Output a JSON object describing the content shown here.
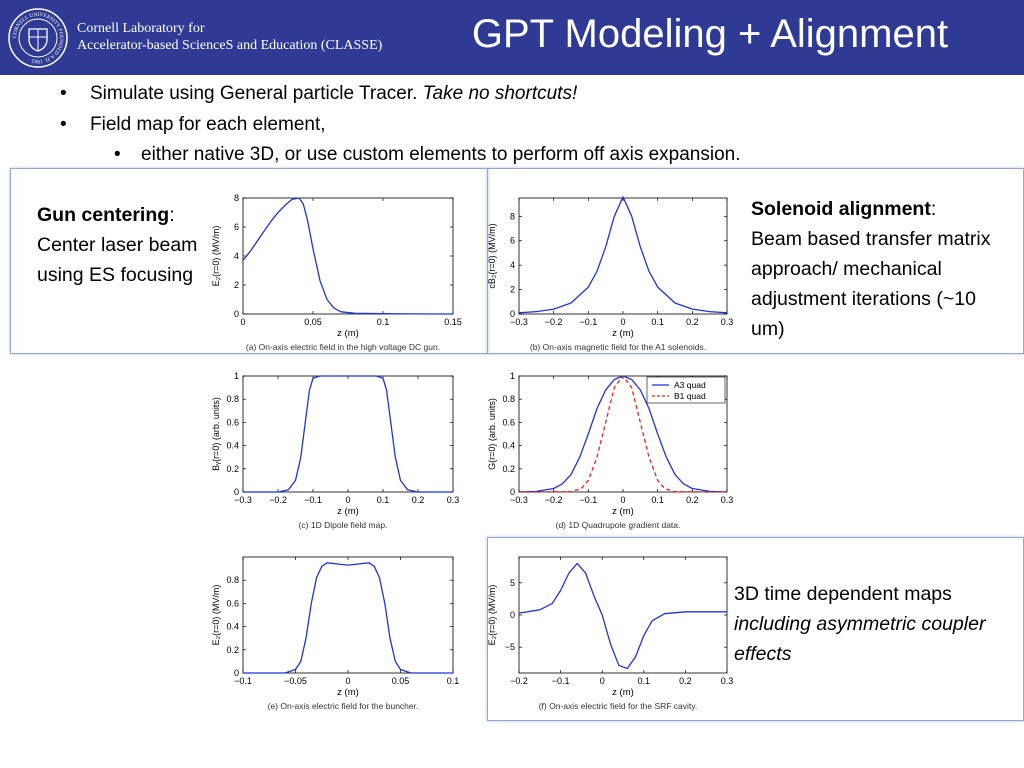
{
  "header": {
    "lab_line1": "Cornell Laboratory for",
    "lab_line2": "Accelerator-based ScienceS and Education (CLASSE)",
    "title": "GPT Modeling + Alignment",
    "seal_text": "CORNELL UNIVERSITY FOUNDED A.D. 1865"
  },
  "bullets": {
    "b1_plain": "Simulate using General particle Tracer. ",
    "b1_italic": "Take no shortcuts!",
    "b2": "Field map for each element,",
    "b3": "either native 3D, or use custom elements to perform off axis expansion."
  },
  "notes": {
    "gun_bold": "Gun centering",
    "gun_colon": ":",
    "gun_text": "Center laser beam using ES focusing",
    "sol_bold": "Solenoid alignment",
    "sol_colon": ":",
    "sol_text": "Beam based transfer matrix approach/ mechanical adjustment iterations (~10 um)",
    "td_plain": "3D time dependent maps",
    "td_italic": "including asymmetric coupler effects"
  },
  "colors": {
    "header_bg": "#2e3a93",
    "curve": "#1f35d6",
    "curve2": "#e0231b",
    "frame": "#8fa8d6"
  },
  "chart_data": [
    {
      "id": "a",
      "type": "line",
      "caption": "(a)  On-axis electric field in the high voltage DC gun.",
      "xlabel": "z (m)",
      "ylabel": "E₂(r=0) (MV/m)",
      "xlim": [
        0,
        0.15
      ],
      "ylim": [
        0,
        8
      ],
      "xticks": [
        0,
        0.05,
        0.1,
        0.15
      ],
      "xtick_labels": [
        "0",
        "0.05",
        "0.1",
        "0.15"
      ],
      "yticks": [
        0,
        2,
        4,
        6,
        8
      ],
      "ytick_labels": [
        "0",
        "2",
        "4",
        "6",
        "8"
      ],
      "series": [
        {
          "x": [
            0,
            0.005,
            0.01,
            0.015,
            0.02,
            0.025,
            0.03,
            0.035,
            0.04,
            0.043,
            0.046,
            0.05,
            0.055,
            0.06,
            0.065,
            0.07,
            0.08,
            0.1,
            0.12,
            0.15
          ],
          "y": [
            3.7,
            4.3,
            5.0,
            5.7,
            6.4,
            7.0,
            7.5,
            7.9,
            8.0,
            7.6,
            6.5,
            4.5,
            2.3,
            1.0,
            0.4,
            0.15,
            0.05,
            0.02,
            0.01,
            0
          ]
        }
      ]
    },
    {
      "id": "b",
      "type": "line",
      "caption": "(b)  On-axis magnetic field for the A1 solenoids.",
      "xlabel": "z (m)",
      "ylabel": "cB₂(r=0) (MV/m)",
      "xlim": [
        -0.3,
        0.3
      ],
      "ylim": [
        0,
        9.5
      ],
      "xticks": [
        -0.3,
        -0.2,
        -0.1,
        0,
        0.1,
        0.2,
        0.3
      ],
      "xtick_labels": [
        "−0.3",
        "−0.2",
        "−0.1",
        "0",
        "0.1",
        "0.2",
        "0.3"
      ],
      "yticks": [
        0,
        2,
        4,
        6,
        8
      ],
      "ytick_labels": [
        "0",
        "2",
        "4",
        "6",
        "8"
      ],
      "series": [
        {
          "x": [
            -0.3,
            -0.25,
            -0.2,
            -0.15,
            -0.1,
            -0.075,
            -0.05,
            -0.025,
            0,
            0.025,
            0.05,
            0.075,
            0.1,
            0.15,
            0.2,
            0.25,
            0.3
          ],
          "y": [
            0.1,
            0.2,
            0.4,
            0.9,
            2.2,
            3.5,
            5.5,
            8.0,
            9.6,
            8.0,
            5.5,
            3.5,
            2.2,
            0.9,
            0.4,
            0.2,
            0.1
          ]
        }
      ]
    },
    {
      "id": "c",
      "type": "line",
      "caption": "(c)  1D Dipole field map.",
      "xlabel": "z (m)",
      "ylabel": "Bᵧ(r=0) (arb. units)",
      "xlim": [
        -0.3,
        0.3
      ],
      "ylim": [
        0,
        1
      ],
      "xticks": [
        -0.3,
        -0.2,
        -0.1,
        0,
        0.1,
        0.2,
        0.3
      ],
      "xtick_labels": [
        "−0.3",
        "−0.2",
        "−0.1",
        "0",
        "0.1",
        "0.2",
        "0.3"
      ],
      "yticks": [
        0,
        0.2,
        0.4,
        0.6,
        0.8,
        1
      ],
      "ytick_labels": [
        "0",
        "0.2",
        "0.4",
        "0.6",
        "0.8",
        "1"
      ],
      "series": [
        {
          "x": [
            -0.3,
            -0.2,
            -0.17,
            -0.15,
            -0.135,
            -0.12,
            -0.11,
            -0.1,
            -0.08,
            0,
            0.08,
            0.1,
            0.11,
            0.12,
            0.135,
            0.15,
            0.17,
            0.2,
            0.3
          ],
          "y": [
            0,
            0,
            0.02,
            0.1,
            0.3,
            0.65,
            0.88,
            0.98,
            1,
            1,
            1,
            0.98,
            0.88,
            0.65,
            0.3,
            0.1,
            0.02,
            0,
            0
          ]
        }
      ]
    },
    {
      "id": "d",
      "type": "line",
      "caption": "(d)  1D Quadrupole gradient data.",
      "xlabel": "z (m)",
      "ylabel": "G(r=0) (arb. units)",
      "xlim": [
        -0.3,
        0.3
      ],
      "ylim": [
        0,
        1
      ],
      "xticks": [
        -0.3,
        -0.2,
        -0.1,
        0,
        0.1,
        0.2,
        0.3
      ],
      "xtick_labels": [
        "−0.3",
        "−0.2",
        "−0.1",
        "0",
        "0.1",
        "0.2",
        "0.3"
      ],
      "yticks": [
        0,
        0.2,
        0.4,
        0.6,
        0.8,
        1
      ],
      "ytick_labels": [
        "0",
        "0.2",
        "0.4",
        "0.6",
        "0.8",
        "1"
      ],
      "legend": "top-right",
      "series": [
        {
          "name": "A3 quad",
          "style": "solid",
          "x": [
            -0.3,
            -0.25,
            -0.2,
            -0.175,
            -0.15,
            -0.125,
            -0.1,
            -0.075,
            -0.05,
            -0.025,
            0,
            0.025,
            0.05,
            0.075,
            0.1,
            0.125,
            0.15,
            0.175,
            0.2,
            0.25,
            0.3
          ],
          "y": [
            0,
            0.005,
            0.03,
            0.07,
            0.15,
            0.3,
            0.5,
            0.72,
            0.88,
            0.97,
            1,
            0.97,
            0.88,
            0.72,
            0.5,
            0.3,
            0.15,
            0.07,
            0.03,
            0.005,
            0
          ]
        },
        {
          "name": "B1 quad",
          "style": "dashed",
          "x": [
            -0.3,
            -0.15,
            -0.12,
            -0.1,
            -0.075,
            -0.05,
            -0.025,
            0,
            0.025,
            0.05,
            0.075,
            0.1,
            0.12,
            0.15,
            0.3
          ],
          "y": [
            0,
            0.003,
            0.03,
            0.1,
            0.3,
            0.6,
            0.9,
            1,
            0.9,
            0.6,
            0.3,
            0.1,
            0.03,
            0.003,
            0
          ]
        }
      ]
    },
    {
      "id": "e",
      "type": "line",
      "caption": "(e)  On-axis electric field for the buncher.",
      "xlabel": "z (m)",
      "ylabel": "E₂(r=0) (MV/m)",
      "xlim": [
        -0.1,
        0.1
      ],
      "ylim": [
        0,
        1
      ],
      "xticks": [
        -0.1,
        -0.05,
        0,
        0.05,
        0.1
      ],
      "xtick_labels": [
        "−0.1",
        "−0.05",
        "0",
        "0.05",
        "0.1"
      ],
      "yticks": [
        0,
        0.2,
        0.4,
        0.6,
        0.8
      ],
      "ytick_labels": [
        "0",
        "0.2",
        "0.4",
        "0.6",
        "0.8"
      ],
      "series": [
        {
          "x": [
            -0.1,
            -0.06,
            -0.05,
            -0.045,
            -0.04,
            -0.035,
            -0.03,
            -0.025,
            -0.02,
            -0.01,
            0,
            0.01,
            0.02,
            0.025,
            0.03,
            0.035,
            0.04,
            0.045,
            0.05,
            0.06,
            0.1
          ],
          "y": [
            0,
            0,
            0.03,
            0.1,
            0.3,
            0.6,
            0.82,
            0.92,
            0.95,
            0.94,
            0.93,
            0.94,
            0.95,
            0.92,
            0.82,
            0.6,
            0.3,
            0.1,
            0.03,
            0,
            0
          ]
        }
      ]
    },
    {
      "id": "f",
      "type": "line",
      "caption": "(f)  On-axis electric field for the SRF cavity.",
      "xlabel": "z (m)",
      "ylabel": "E₂(r=0) (MV/m)",
      "xlim": [
        -0.2,
        0.3
      ],
      "ylim": [
        -9,
        9
      ],
      "xticks": [
        -0.2,
        -0.1,
        0,
        0.1,
        0.2,
        0.3
      ],
      "xtick_labels": [
        "−0.2",
        "−0.1",
        "0",
        "0.1",
        "0.2",
        "0.3"
      ],
      "yticks": [
        -5,
        0,
        5
      ],
      "ytick_labels": [
        "−5",
        "0",
        "5"
      ],
      "series": [
        {
          "x": [
            -0.2,
            -0.15,
            -0.12,
            -0.1,
            -0.08,
            -0.06,
            -0.04,
            -0.02,
            0,
            0.02,
            0.04,
            0.06,
            0.08,
            0.1,
            0.12,
            0.15,
            0.2,
            0.3
          ],
          "y": [
            0.3,
            0.8,
            1.8,
            3.8,
            6.5,
            8.0,
            6.5,
            3.0,
            0,
            -4.5,
            -7.8,
            -8.3,
            -6.5,
            -3.2,
            -0.9,
            0.2,
            0.5,
            0.5
          ]
        }
      ]
    }
  ]
}
